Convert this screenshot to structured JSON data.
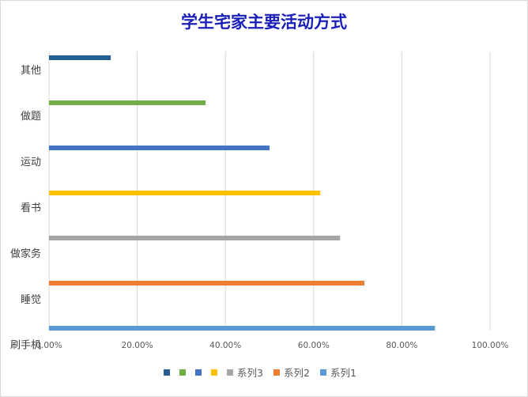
{
  "chart_data": {
    "type": "bar",
    "orientation": "horizontal",
    "title": "学生宅家主要活动方式",
    "categories": [
      "其他",
      "做题",
      "运动",
      "看书",
      "做家务",
      "睡觉",
      "刷手机"
    ],
    "values": [
      0.14,
      0.355,
      0.5,
      0.615,
      0.66,
      0.715,
      0.875
    ],
    "colors": [
      "#255e91",
      "#70ad47",
      "#4472c4",
      "#ffc000",
      "#a5a5a5",
      "#ed7d31",
      "#5b9bd5"
    ],
    "x_ticks": [
      "0.00%",
      "20.00%",
      "40.00%",
      "60.00%",
      "80.00%",
      "100.00%"
    ],
    "xlim": [
      0,
      1
    ],
    "grid": true,
    "legend_position": "bottom",
    "legend": [
      {
        "name": "",
        "color": "#255e91"
      },
      {
        "name": "",
        "color": "#70ad47"
      },
      {
        "name": "",
        "color": "#4472c4"
      },
      {
        "name": "",
        "color": "#ffc000"
      },
      {
        "name": "系列3",
        "color": "#a5a5a5"
      },
      {
        "name": "系列2",
        "color": "#ed7d31"
      },
      {
        "name": "系列1",
        "color": "#5b9bd5"
      }
    ]
  }
}
